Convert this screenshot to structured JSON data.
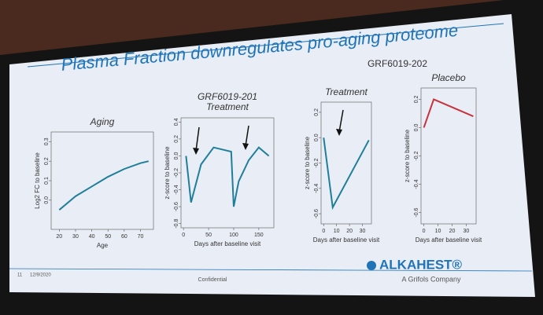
{
  "slide": {
    "title": "Plasma Fraction downregulates pro-aging proteome",
    "group_title": "GRF6019-202",
    "page_number": "11",
    "date": "12/9/2020",
    "confidential": "Confidential",
    "logo": "ALKAHEST®",
    "logo_sub": "A Grifols Company"
  },
  "panels": [
    {
      "title": "Aging",
      "xlabel": "Age",
      "ylabel": "Log2 FC to baseline",
      "xlim": [
        15,
        78
      ],
      "ylim": [
        -0.15,
        0.35
      ],
      "xticks": [
        20,
        30,
        40,
        50,
        60,
        70
      ],
      "yticks": [
        {
          "value": 0,
          "label": "0.0"
        },
        0.1,
        0.2,
        0.3
      ],
      "lines": [
        {
          "color": "#1f7f9a",
          "x": [
            20,
            30,
            40,
            50,
            60,
            70,
            75
          ],
          "values": [
            -0.05,
            0.02,
            0.07,
            0.12,
            0.16,
            0.19,
            0.2
          ]
        }
      ]
    },
    {
      "title": "GRF6019-201",
      "subtitle": "Treatment",
      "xlabel": "Days after baseline visit",
      "ylabel": "z-score to baseline",
      "xlim": [
        -5,
        180
      ],
      "ylim": [
        -0.85,
        0.45
      ],
      "xticks": [
        0,
        50,
        100,
        150
      ],
      "yticks": [
        0.4,
        0.2,
        {
          "value": 0,
          "label": "0.0"
        },
        -0.2,
        -0.4,
        -0.6,
        -0.8
      ],
      "lines": [
        {
          "color": "#1f7f9a",
          "x": [
            5,
            15,
            35,
            60,
            95,
            100,
            110,
            130,
            150,
            170
          ],
          "values": [
            0.0,
            -0.55,
            -0.1,
            0.1,
            0.05,
            -0.6,
            -0.3,
            -0.05,
            0.1,
            0.0
          ]
        }
      ]
    },
    {
      "title": "Treatment",
      "xlabel": "Days after baseline visit",
      "ylabel": "z-score to baseline",
      "xlim": [
        -2,
        37
      ],
      "ylim": [
        -0.68,
        0.28
      ],
      "xticks": [
        0,
        10,
        20,
        30
      ],
      "yticks": [
        0.2,
        {
          "value": 0,
          "label": "0.0"
        },
        -0.2,
        -0.4,
        -0.6
      ],
      "lines": [
        {
          "color": "#1f7f9a",
          "x": [
            0,
            7,
            35
          ],
          "values": [
            0.0,
            -0.55,
            -0.02
          ]
        }
      ]
    },
    {
      "title": "Placebo",
      "xlabel": "Days after baseline visit",
      "ylabel": "z-score to baseline",
      "xlim": [
        -2,
        37
      ],
      "ylim": [
        -0.68,
        0.28
      ],
      "xticks": [
        0,
        10,
        20,
        30
      ],
      "yticks": [
        0.2,
        {
          "value": 0,
          "label": "0.0"
        },
        -0.2,
        -0.4,
        -0.6
      ],
      "lines": [
        {
          "color": "#c8323c",
          "x": [
            0,
            7,
            35
          ],
          "values": [
            0.0,
            0.2,
            0.08
          ]
        }
      ]
    }
  ]
}
